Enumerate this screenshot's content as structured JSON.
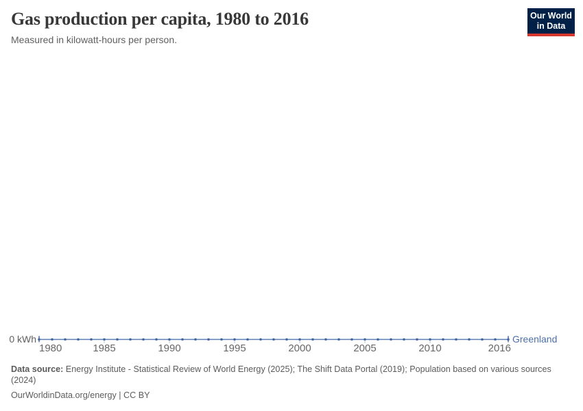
{
  "header": {
    "title": "Gas production per capita, 1980 to 2016",
    "subtitle": "Measured in kilowatt-hours per person.",
    "logo": {
      "line1": "Our World",
      "line2": "in Data",
      "bg_color": "#002147",
      "accent_color": "#d7382e"
    }
  },
  "chart_data": {
    "type": "line",
    "title": "Gas production per capita, 1980 to 2016",
    "subtitle": "Measured in kilowatt-hours per person.",
    "unit": "kilowatt-hours per person",
    "grid": false,
    "legend_position": "end-of-line-label",
    "xlim": [
      1980,
      2016
    ],
    "ylim": [
      0,
      0
    ],
    "y_zero_label": "0 kWh",
    "x_ticks": [
      1980,
      1985,
      1990,
      1995,
      2000,
      2005,
      2010,
      2016
    ],
    "line_color": "#5b7db3",
    "marker_color": "#44679f",
    "axis_tick_color": "#b9c5d6",
    "series": [
      {
        "name": "Greenland",
        "color": "#4c6fa8",
        "x": [
          1980,
          1981,
          1982,
          1983,
          1984,
          1985,
          1986,
          1987,
          1988,
          1989,
          1990,
          1991,
          1992,
          1993,
          1994,
          1995,
          1996,
          1997,
          1998,
          1999,
          2000,
          2001,
          2002,
          2003,
          2004,
          2005,
          2006,
          2007,
          2008,
          2009,
          2010,
          2011,
          2012,
          2013,
          2014,
          2015,
          2016
        ],
        "values": [
          0,
          0,
          0,
          0,
          0,
          0,
          0,
          0,
          0,
          0,
          0,
          0,
          0,
          0,
          0,
          0,
          0,
          0,
          0,
          0,
          0,
          0,
          0,
          0,
          0,
          0,
          0,
          0,
          0,
          0,
          0,
          0,
          0,
          0,
          0,
          0,
          0
        ]
      }
    ]
  },
  "footer": {
    "datasource_label": "Data source:",
    "datasource_text": " Energy Institute - Statistical Review of World Energy (2025); The Shift Data Portal (2019); Population based on various sources (2024)",
    "license_text": "OurWorldinData.org/energy | CC BY"
  }
}
